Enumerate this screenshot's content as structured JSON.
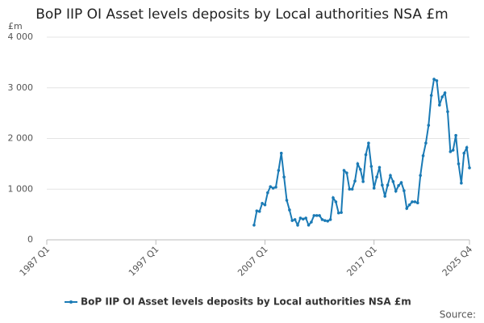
{
  "chart_data": {
    "type": "line",
    "title": "BoP IIP OI Asset levels deposits by Local authorities NSA £m",
    "y_label": "£m",
    "source": "Source:",
    "xlim": [
      1987,
      2025.75
    ],
    "xticks": [
      {
        "value": 1987,
        "label": "1987 Q1"
      },
      {
        "value": 1997,
        "label": "1997 Q1"
      },
      {
        "value": 2007,
        "label": "2007 Q1"
      },
      {
        "value": 2017,
        "label": "2017 Q1"
      },
      {
        "value": 2025.75,
        "label": "2025 Q4"
      }
    ],
    "ylim": [
      0,
      4000
    ],
    "yticks": [
      0,
      {
        "value": 1000,
        "label": "1 000"
      },
      {
        "value": 2000,
        "label": "2 000"
      },
      {
        "value": 3000,
        "label": "3 000"
      },
      {
        "value": 4000,
        "label": "4 000"
      }
    ],
    "grid": true,
    "legend": "bottom",
    "x": [
      2006,
      2006.25,
      2006.5,
      2006.75,
      2007,
      2007.25,
      2007.5,
      2007.75,
      2008,
      2008.25,
      2008.5,
      2008.75,
      2009,
      2009.25,
      2009.5,
      2009.75,
      2010,
      2010.25,
      2010.5,
      2010.75,
      2011,
      2011.25,
      2011.5,
      2011.75,
      2012,
      2012.25,
      2012.5,
      2012.75,
      2013,
      2013.25,
      2013.5,
      2013.75,
      2014,
      2014.25,
      2014.5,
      2014.75,
      2015,
      2015.25,
      2015.5,
      2015.75,
      2016,
      2016.25,
      2016.5,
      2016.75,
      2017,
      2017.25,
      2017.5,
      2017.75,
      2018,
      2018.25,
      2018.5,
      2018.75,
      2019,
      2019.25,
      2019.5,
      2019.75,
      2020,
      2020.25,
      2020.5,
      2020.75,
      2021,
      2021.25,
      2021.5,
      2021.75,
      2022,
      2022.25,
      2022.5,
      2022.75,
      2023,
      2023.25,
      2023.5,
      2023.75,
      2024,
      2024.25,
      2024.5,
      2024.75,
      2025,
      2025.25,
      2025.5,
      2025.75
    ],
    "series": [
      {
        "name": "BoP IIP OI Asset levels deposits by Local authorities NSA £m",
        "color": "#1a7ab5",
        "values": [
          290,
          570,
          560,
          720,
          690,
          930,
          1050,
          1020,
          1040,
          1370,
          1710,
          1240,
          780,
          590,
          380,
          400,
          290,
          430,
          410,
          430,
          290,
          350,
          480,
          480,
          480,
          400,
          380,
          370,
          400,
          830,
          750,
          530,
          540,
          1370,
          1320,
          1000,
          1000,
          1160,
          1500,
          1390,
          1150,
          1680,
          1910,
          1450,
          1020,
          1240,
          1430,
          1080,
          860,
          1080,
          1270,
          1150,
          960,
          1070,
          1130,
          970,
          620,
          690,
          750,
          750,
          730,
          1270,
          1660,
          1910,
          2260,
          2850,
          3170,
          3140,
          2660,
          2820,
          2900,
          2530,
          1740,
          1770,
          2060,
          1500,
          1120,
          1710,
          1820,
          1420
        ]
      }
    ]
  }
}
